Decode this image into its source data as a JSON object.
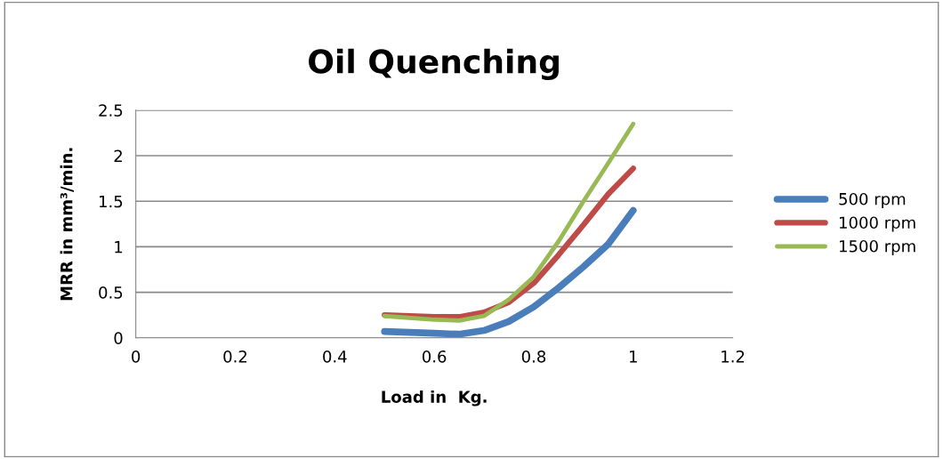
{
  "chart_data": {
    "type": "line",
    "title": "Oil Quenching",
    "xlabel": "Load in  Kg.",
    "ylabel": "MRR in mm³/min.",
    "x": [
      0.5,
      0.6,
      0.65,
      0.7,
      0.75,
      0.8,
      0.85,
      0.9,
      0.95,
      1.0
    ],
    "series": [
      {
        "name": "500 rpm",
        "color": "#4a7ebb",
        "values": [
          0.07,
          0.05,
          0.04,
          0.08,
          0.18,
          0.34,
          0.55,
          0.78,
          1.03,
          1.4
        ]
      },
      {
        "name": "1000 rpm",
        "color": "#be4b48",
        "values": [
          0.25,
          0.23,
          0.23,
          0.28,
          0.39,
          0.6,
          0.91,
          1.24,
          1.58,
          1.86
        ]
      },
      {
        "name": "1500 rpm",
        "color": "#98b954",
        "values": [
          0.24,
          0.2,
          0.19,
          0.24,
          0.42,
          0.67,
          1.06,
          1.5,
          1.92,
          2.35
        ]
      }
    ],
    "xlim": [
      0,
      1.2
    ],
    "xticks": [
      0,
      0.2,
      0.4,
      0.6,
      0.8,
      1,
      1.2
    ],
    "ylim": [
      0,
      2.5
    ],
    "yticks": [
      0,
      0.5,
      1,
      1.5,
      2,
      2.5
    ],
    "grid": "y",
    "legend": "right",
    "marker": "none",
    "line_style": "solid"
  }
}
